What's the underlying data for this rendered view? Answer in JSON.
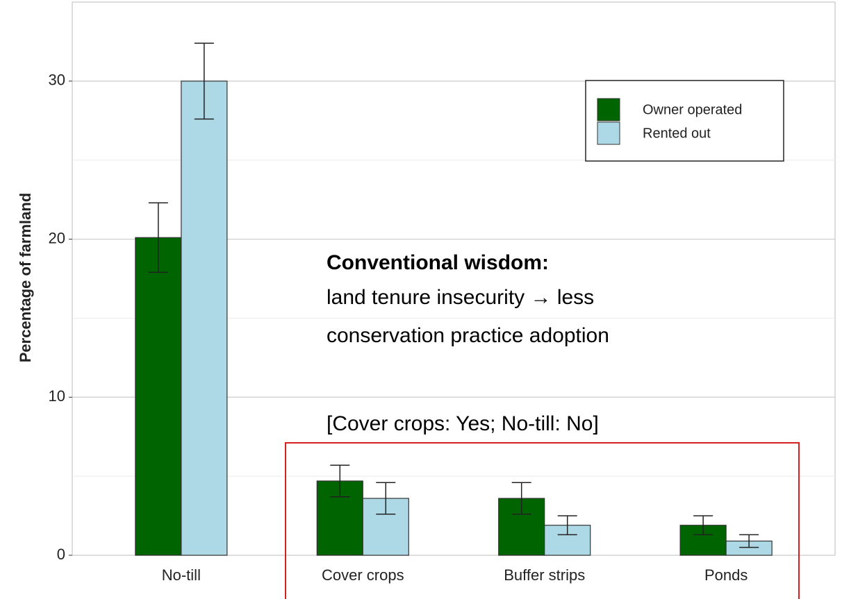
{
  "chart_data": {
    "type": "bar",
    "y_label": "Percentage of farmland",
    "categories": [
      "No-till",
      "Cover crops",
      "Buffer strips",
      "Ponds"
    ],
    "series": [
      {
        "name": "Owner operated",
        "color": "#006400",
        "values": [
          20.1,
          4.7,
          3.6,
          1.9
        ],
        "errors": [
          2.2,
          1.0,
          1.0,
          0.6
        ]
      },
      {
        "name": "Rented out",
        "color": "#add8e6",
        "values": [
          30.0,
          3.6,
          1.9,
          0.9
        ],
        "errors": [
          2.4,
          1.0,
          0.6,
          0.4
        ]
      }
    ],
    "ylim": [
      0,
      35
    ],
    "yticks": [
      0,
      10,
      20,
      30
    ],
    "minor_grid": [
      5,
      15,
      25
    ],
    "grid": true,
    "legend": "upper right",
    "annotation": {
      "title": "Conventional wisdom:",
      "lines": [
        "land tenure insecurity → less",
        "conservation practice adoption",
        "[Cover crops: Yes; No-till: No]"
      ]
    }
  }
}
